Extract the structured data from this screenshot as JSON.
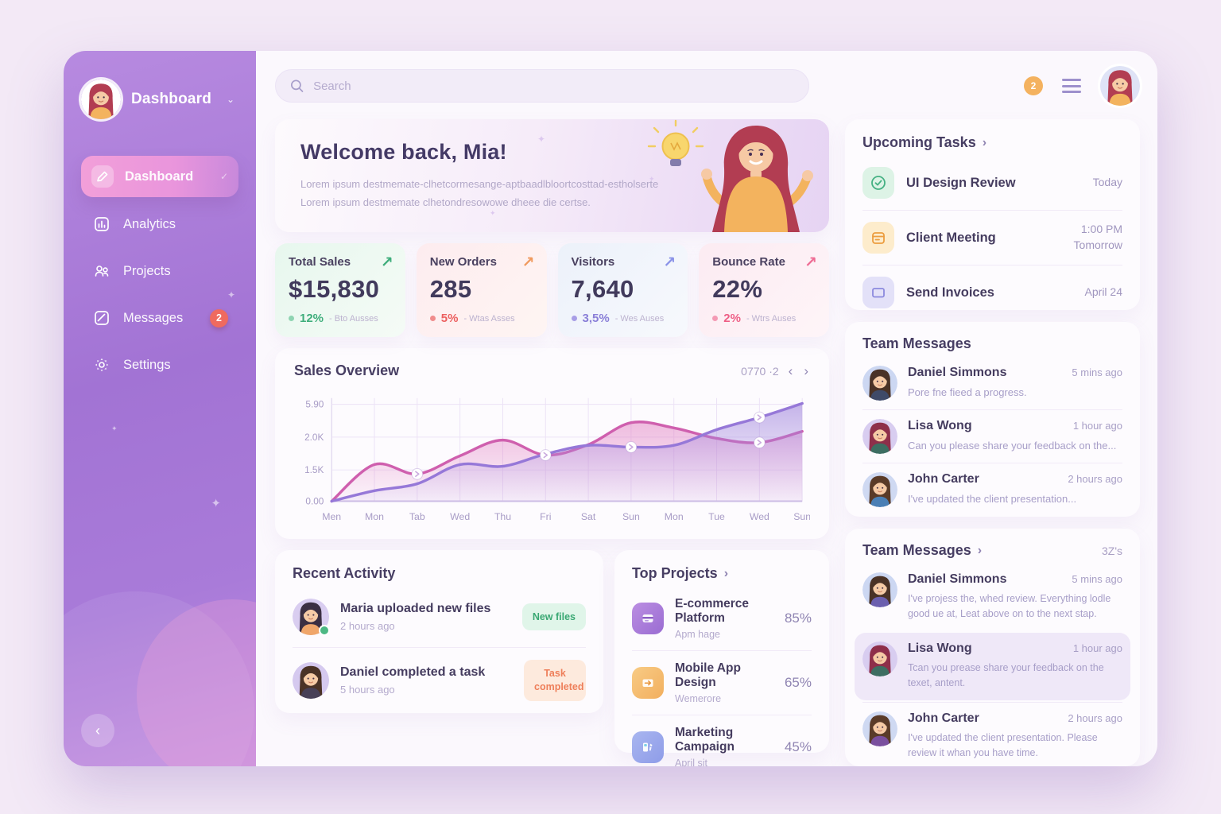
{
  "colors": {
    "sidebar_purple": "#a878d6",
    "active_pink": "#f09fd9",
    "accent_green": "#3fae7c",
    "accent_orange": "#f09a5e",
    "accent_blue": "#8a93e8",
    "accent_pink": "#ee6d95",
    "chart_pink": "#cf5fae",
    "chart_purple": "#9678d8",
    "badge_red": "#ef6a5f"
  },
  "sidebar": {
    "logo": {
      "title": "Dashboard",
      "avatar": {
        "hair": "#b23d52",
        "shirt": "#f3b35e",
        "bg": "#ffffff"
      }
    },
    "items": [
      {
        "label": "Dashboard"
      },
      {
        "label": "Analytics"
      },
      {
        "label": "Projects"
      },
      {
        "label": "Messages",
        "badge": "2"
      },
      {
        "label": "Settings"
      }
    ]
  },
  "topbar": {
    "search_placeholder": "Search",
    "notification_badge": "2",
    "avatar": {
      "hair": "#b23d52",
      "shirt": "#f3b35e",
      "bg": "#dfe3f6"
    }
  },
  "welcome": {
    "title": "Welcome back, Mia!",
    "line1": "Lorem ipsum destmemate-clhetcormesange-aptbaadlbloortcosttad-estholserte",
    "line2": "Lorem ipsum destmemate clhetondresowowe dheee die certse."
  },
  "stats": [
    {
      "label": "Total Sales",
      "value": "$15,830",
      "delta": "12%",
      "note": "- Bto Ausses",
      "arrow": "up"
    },
    {
      "label": "New Orders",
      "value": "285",
      "delta": "5%",
      "note": "- Wtas Asses",
      "arrow": "up"
    },
    {
      "label": "Visitors",
      "value": "7,640",
      "delta": "3,5%",
      "note": "- Wes Auses",
      "arrow": "up"
    },
    {
      "label": "Bounce Rate",
      "value": "22%",
      "delta": "2%",
      "note": "- Wtrs Auses",
      "arrow": "up"
    }
  ],
  "sales_overview": {
    "title": "Sales Overview",
    "range_label": "0770 ·2"
  },
  "chart_data": {
    "type": "area",
    "title": "Sales Overview",
    "x": [
      "Men",
      "Mon",
      "Tab",
      "Wed",
      "Thu",
      "Fri",
      "Sat",
      "Sun",
      "Mon",
      "Tue",
      "Wed",
      "Sun"
    ],
    "y_ticks": [
      "5.90",
      "2.0K",
      "1.5K",
      "0.00"
    ],
    "ylim": [
      0,
      3000
    ],
    "grid": true,
    "legend": "none",
    "series": [
      {
        "name": "sales-current",
        "color": "#cf5fae",
        "gradient": "grad-pink",
        "values": [
          0,
          1050,
          780,
          1300,
          1750,
          1320,
          1620,
          2250,
          2100,
          1800,
          1680,
          2000
        ],
        "markers": [
          2,
          5,
          10
        ]
      },
      {
        "name": "sales-previous",
        "color": "#9678d8",
        "gradient": "grad-purple",
        "values": [
          0,
          300,
          500,
          1050,
          1000,
          1350,
          1600,
          1550,
          1600,
          2050,
          2400,
          2800
        ],
        "markers": [
          7,
          10
        ]
      }
    ]
  },
  "recent_activity": {
    "title": "Recent Activity",
    "items": [
      {
        "name": "Maria uploaded new files",
        "time": "2 hours ago",
        "badge": "New files",
        "avatar": {
          "hair": "#3b2f42",
          "shirt": "#f0a66a",
          "bg": "#d9cdf0"
        },
        "online": true
      },
      {
        "name": "Daniel completed a task",
        "time": "5 hours ago",
        "badge": "Task completed",
        "avatar": {
          "hair": "#4a3226",
          "shirt": "#474057",
          "bg": "#d5c9ef"
        },
        "online": false
      }
    ]
  },
  "top_projects": {
    "title": "Top Projects",
    "items": [
      {
        "name": "E-commerce Platform",
        "subtitle": "Apm hage",
        "percent": "85%"
      },
      {
        "name": "Mobile App Design",
        "subtitle": "Wemerore",
        "percent": "65%"
      },
      {
        "name": "Marketing Campaign",
        "subtitle": "April sit",
        "percent": "45%"
      }
    ]
  },
  "upcoming_tasks": {
    "title": "Upcoming Tasks",
    "items": [
      {
        "name": "UI Design Review",
        "when": "Today"
      },
      {
        "name": "Client Meeting",
        "when": "1:00 PM Tomorrow"
      },
      {
        "name": "Send Invoices",
        "when": "April 24"
      }
    ]
  },
  "team_messages": {
    "title": "Team Messages",
    "items": [
      {
        "name": "Daniel Simmons",
        "time": "5 mins ago",
        "preview": "Pore fne fieed a progress.",
        "avatar": {
          "hair": "#4a3226",
          "shirt": "#3f4a68",
          "bg": "#ccd7f2"
        }
      },
      {
        "name": "Lisa Wong",
        "time": "1 hour ago",
        "preview": "Can you please share your feedback on the...",
        "avatar": {
          "hair": "#8e2f4a",
          "shirt": "#3d6e62",
          "bg": "#d8cdf0"
        }
      },
      {
        "name": "John Carter",
        "time": "2 hours ago",
        "preview": "I've updated the client presentation...",
        "avatar": {
          "hair": "#5a3b28",
          "shirt": "#4a7fb5",
          "bg": "#cfd9f2"
        }
      }
    ]
  },
  "team_messages_2": {
    "title": "Team Messages",
    "count_label": "3Z's",
    "items": [
      {
        "name": "Daniel Simmons",
        "time": "5 mins ago",
        "preview": "I've projess the, whed review. Everything lodle good ue at, Leat above on to the next stap.",
        "avatar": {
          "hair": "#4a3226",
          "shirt": "#6b5fae",
          "bg": "#ccd7f2"
        }
      },
      {
        "name": "Lisa Wong",
        "time": "1 hour ago",
        "preview": "Tcan you prease share your feedback on the texet, antent.",
        "avatar": {
          "hair": "#8e2f4a",
          "shirt": "#3d6e62",
          "bg": "#d8cdf0"
        }
      },
      {
        "name": "John Carter",
        "time": "2 hours ago",
        "preview": "I've updated the client presentation. Please review it whan you have time.",
        "avatar": {
          "hair": "#5a3b28",
          "shirt": "#7a4f9e",
          "bg": "#cfd9f2"
        }
      }
    ]
  }
}
